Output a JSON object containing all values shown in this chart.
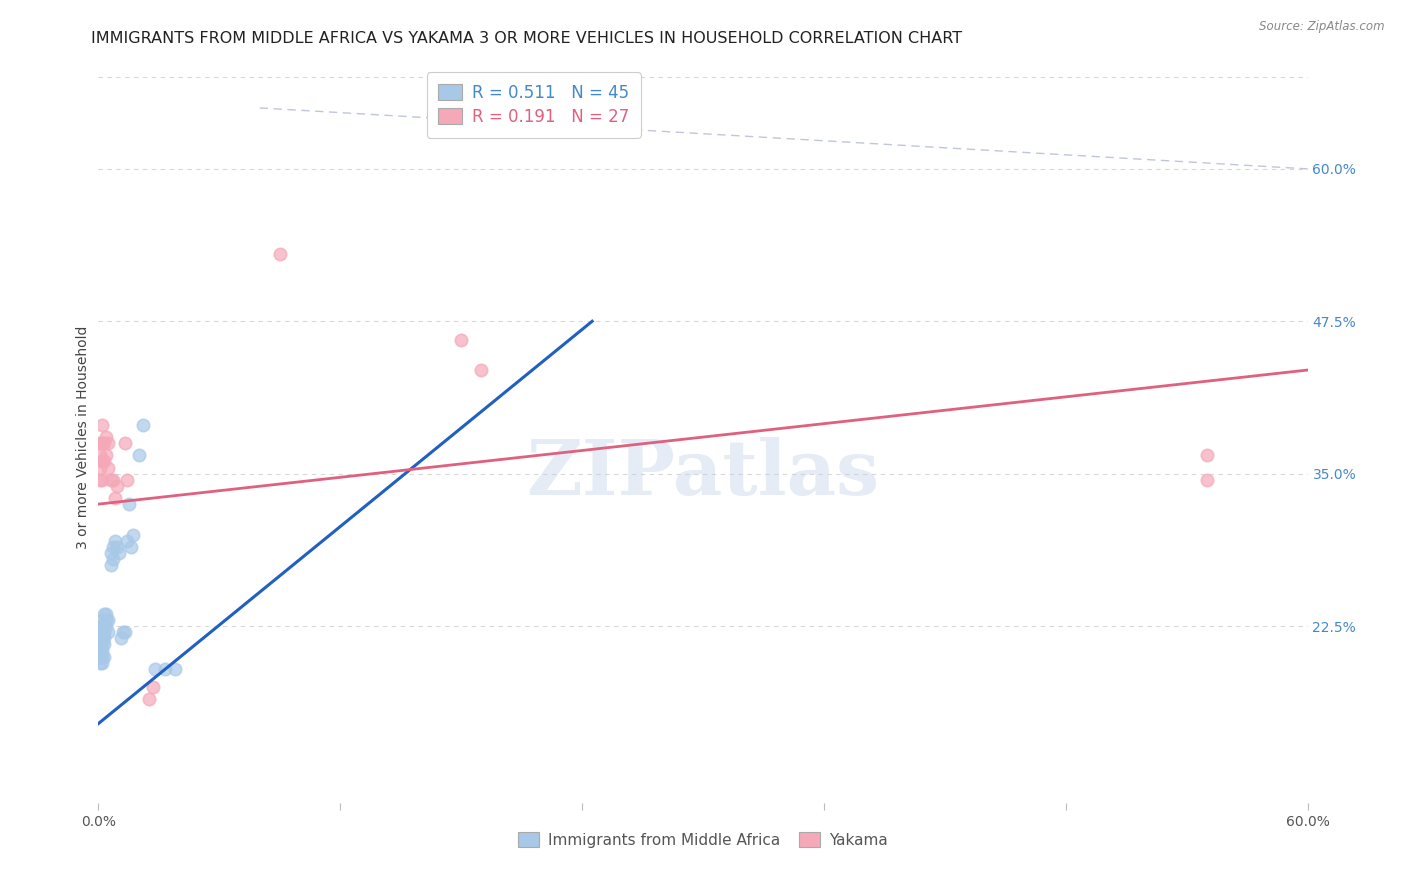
{
  "title": "IMMIGRANTS FROM MIDDLE AFRICA VS YAKAMA 3 OR MORE VEHICLES IN HOUSEHOLD CORRELATION CHART",
  "source": "Source: ZipAtlas.com",
  "ylabel": "3 or more Vehicles in Household",
  "xlim": [
    0.0,
    0.6
  ],
  "ylim": [
    0.08,
    0.68
  ],
  "x_tick_positions": [
    0.0,
    0.12,
    0.24,
    0.36,
    0.48,
    0.6
  ],
  "x_tick_labels": [
    "0.0%",
    "",
    "",
    "",
    "",
    "60.0%"
  ],
  "right_yticks": [
    0.225,
    0.35,
    0.475,
    0.6
  ],
  "right_ytick_labels": [
    "22.5%",
    "35.0%",
    "47.5%",
    "60.0%"
  ],
  "legend_r_blue": "R = 0.511",
  "legend_n_blue": "N = 45",
  "legend_r_pink": "R = 0.191",
  "legend_n_pink": "N = 27",
  "legend_label_blue": "Immigrants from Middle Africa",
  "legend_label_pink": "Yakama",
  "blue_color": "#a8c8e8",
  "pink_color": "#f4a8b8",
  "blue_line_color": "#2060c0",
  "pink_line_color": "#e06080",
  "blue_scatter": [
    [
      0.001,
      0.195
    ],
    [
      0.001,
      0.2
    ],
    [
      0.001,
      0.205
    ],
    [
      0.001,
      0.21
    ],
    [
      0.001,
      0.215
    ],
    [
      0.001,
      0.22
    ],
    [
      0.001,
      0.225
    ],
    [
      0.002,
      0.195
    ],
    [
      0.002,
      0.2
    ],
    [
      0.002,
      0.205
    ],
    [
      0.002,
      0.21
    ],
    [
      0.002,
      0.215
    ],
    [
      0.002,
      0.22
    ],
    [
      0.002,
      0.225
    ],
    [
      0.002,
      0.23
    ],
    [
      0.003,
      0.2
    ],
    [
      0.003,
      0.21
    ],
    [
      0.003,
      0.215
    ],
    [
      0.003,
      0.22
    ],
    [
      0.003,
      0.225
    ],
    [
      0.003,
      0.235
    ],
    [
      0.004,
      0.225
    ],
    [
      0.004,
      0.23
    ],
    [
      0.004,
      0.235
    ],
    [
      0.005,
      0.22
    ],
    [
      0.005,
      0.23
    ],
    [
      0.006,
      0.275
    ],
    [
      0.006,
      0.285
    ],
    [
      0.007,
      0.28
    ],
    [
      0.007,
      0.29
    ],
    [
      0.008,
      0.295
    ],
    [
      0.009,
      0.29
    ],
    [
      0.01,
      0.285
    ],
    [
      0.011,
      0.215
    ],
    [
      0.012,
      0.22
    ],
    [
      0.013,
      0.22
    ],
    [
      0.014,
      0.295
    ],
    [
      0.015,
      0.325
    ],
    [
      0.016,
      0.29
    ],
    [
      0.017,
      0.3
    ],
    [
      0.02,
      0.365
    ],
    [
      0.022,
      0.39
    ],
    [
      0.028,
      0.19
    ],
    [
      0.033,
      0.19
    ],
    [
      0.038,
      0.19
    ]
  ],
  "pink_scatter": [
    [
      0.001,
      0.345
    ],
    [
      0.001,
      0.355
    ],
    [
      0.001,
      0.365
    ],
    [
      0.001,
      0.375
    ],
    [
      0.002,
      0.345
    ],
    [
      0.002,
      0.36
    ],
    [
      0.002,
      0.375
    ],
    [
      0.002,
      0.39
    ],
    [
      0.003,
      0.36
    ],
    [
      0.003,
      0.375
    ],
    [
      0.004,
      0.365
    ],
    [
      0.004,
      0.38
    ],
    [
      0.005,
      0.375
    ],
    [
      0.005,
      0.355
    ],
    [
      0.006,
      0.345
    ],
    [
      0.007,
      0.345
    ],
    [
      0.008,
      0.33
    ],
    [
      0.009,
      0.34
    ],
    [
      0.013,
      0.375
    ],
    [
      0.014,
      0.345
    ],
    [
      0.025,
      0.165
    ],
    [
      0.027,
      0.175
    ],
    [
      0.09,
      0.53
    ],
    [
      0.18,
      0.46
    ],
    [
      0.19,
      0.435
    ],
    [
      0.55,
      0.365
    ],
    [
      0.55,
      0.345
    ]
  ],
  "blue_line_x": [
    0.0,
    0.245
  ],
  "blue_line_y": [
    0.145,
    0.475
  ],
  "pink_line_x": [
    0.0,
    0.6
  ],
  "pink_line_y": [
    0.325,
    0.435
  ],
  "diag_line_x": [
    0.08,
    0.6
  ],
  "diag_line_y": [
    0.65,
    0.6
  ],
  "watermark": "ZIPatlas",
  "background_color": "#ffffff",
  "grid_color": "#d8d8d8",
  "title_fontsize": 11.5,
  "axis_label_fontsize": 10,
  "tick_fontsize": 10,
  "scatter_size": 80,
  "scatter_alpha": 0.7,
  "scatter_linewidth": 1.2
}
